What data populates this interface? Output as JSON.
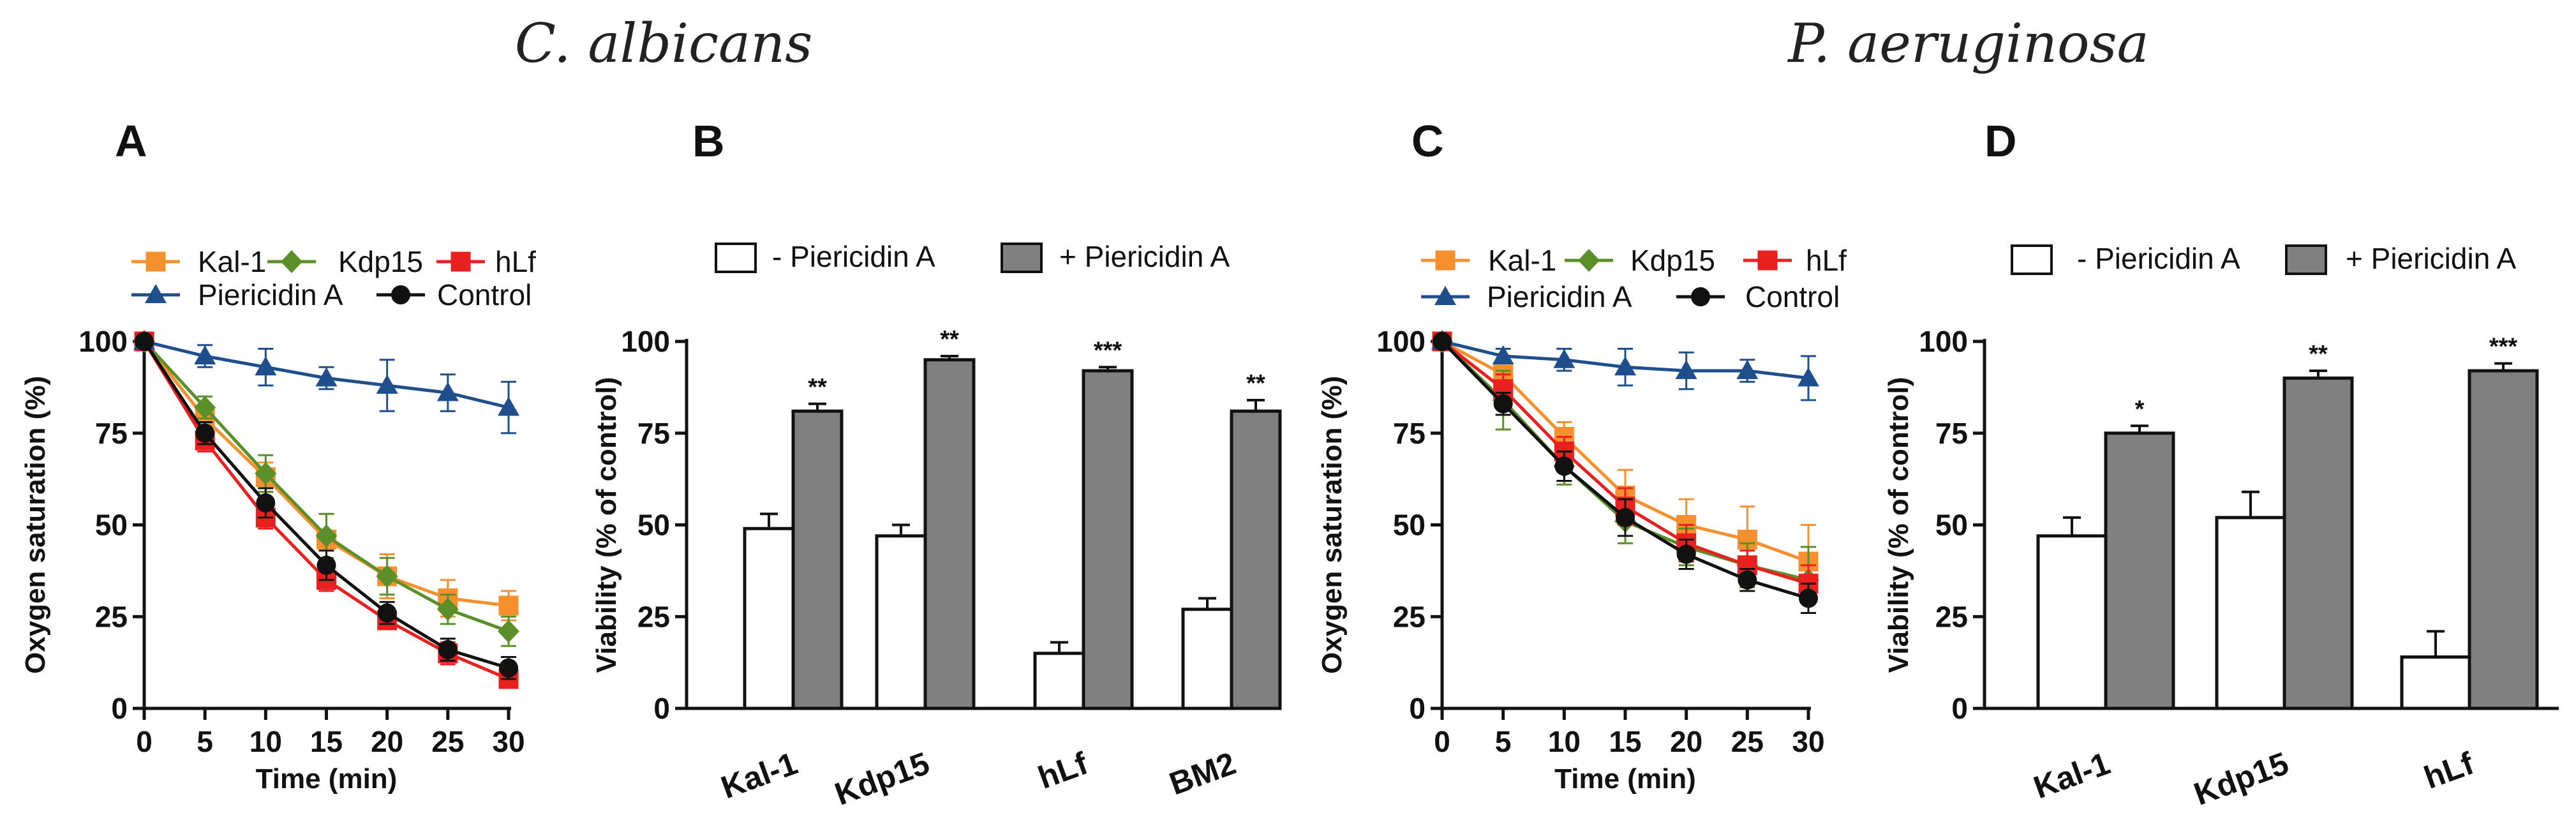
{
  "titles": {
    "left": "C. albicans",
    "right": "P. aeruginosa"
  },
  "chart_data": [
    {
      "panel": "A",
      "type": "line",
      "xlabel": "Time (min)",
      "ylabel": "Oxygen saturation (%)",
      "x": [
        0,
        5,
        10,
        15,
        20,
        25,
        30
      ],
      "xticks": [
        "0",
        "5",
        "10",
        "15",
        "20",
        "25",
        "30"
      ],
      "ylim": [
        0,
        100
      ],
      "yticks": [
        "0",
        "25",
        "50",
        "75",
        "100"
      ],
      "series": [
        {
          "name": "Kal-1",
          "color": "#f4912e",
          "marker": "square",
          "values": [
            100,
            79,
            63,
            46,
            36,
            30,
            28
          ],
          "err": [
            0,
            3,
            4,
            7,
            6,
            5,
            4
          ]
        },
        {
          "name": "Kdp15",
          "color": "#5a8f29",
          "marker": "diamond",
          "values": [
            100,
            82,
            64,
            47,
            36,
            27,
            21
          ],
          "err": [
            0,
            3,
            5,
            6,
            5,
            4,
            4
          ]
        },
        {
          "name": "hLf",
          "color": "#e8201f",
          "marker": "square",
          "values": [
            100,
            73,
            52,
            35,
            24,
            15,
            8
          ],
          "err": [
            0,
            3,
            3,
            3,
            2,
            3,
            2
          ]
        },
        {
          "name": "Piericidin A",
          "color": "#1f4e8c",
          "marker": "triangle",
          "values": [
            100,
            96,
            93,
            90,
            88,
            86,
            82
          ],
          "err": [
            0,
            3,
            5,
            3,
            7,
            5,
            7
          ]
        },
        {
          "name": "Control",
          "color": "#111111",
          "marker": "circle",
          "values": [
            100,
            75,
            56,
            39,
            26,
            16,
            11
          ],
          "err": [
            0,
            3,
            4,
            4,
            3,
            3,
            3
          ]
        }
      ]
    },
    {
      "panel": "B",
      "type": "bar",
      "ylabel": "Viability (% of control)",
      "categories": [
        "Kal-1",
        "Kdp15",
        "hLf",
        "BM2"
      ],
      "ylim": [
        0,
        100
      ],
      "yticks": [
        "0",
        "25",
        "50",
        "75",
        "100"
      ],
      "series": [
        {
          "name": "- Piericidin A",
          "color": "#ffffff",
          "values": [
            49,
            47,
            15,
            27
          ],
          "err": [
            4,
            3,
            3,
            3
          ]
        },
        {
          "name": "+ Piericidin A",
          "color": "#808080",
          "values": [
            81,
            95,
            92,
            81
          ],
          "err": [
            2,
            1,
            1,
            3
          ]
        }
      ],
      "significance": [
        "**",
        "**",
        "***",
        "**"
      ]
    },
    {
      "panel": "C",
      "type": "line",
      "xlabel": "Time (min)",
      "ylabel": "Oxygen saturation (%)",
      "x": [
        0,
        5,
        10,
        15,
        20,
        25,
        30
      ],
      "xticks": [
        "0",
        "5",
        "10",
        "15",
        "20",
        "25",
        "30"
      ],
      "ylim": [
        0,
        100
      ],
      "yticks": [
        "0",
        "25",
        "50",
        "75",
        "100"
      ],
      "series": [
        {
          "name": "Kal-1",
          "color": "#f4912e",
          "marker": "square",
          "values": [
            100,
            91,
            74,
            58,
            50,
            46,
            40
          ],
          "err": [
            0,
            3,
            4,
            7,
            7,
            9,
            10
          ]
        },
        {
          "name": "Kdp15",
          "color": "#5a8f29",
          "marker": "diamond",
          "values": [
            100,
            84,
            66,
            51,
            44,
            39,
            35
          ],
          "err": [
            0,
            8,
            5,
            6,
            5,
            6,
            9
          ]
        },
        {
          "name": "hLf",
          "color": "#e8201f",
          "marker": "square",
          "values": [
            100,
            87,
            70,
            55,
            45,
            39,
            34
          ],
          "err": [
            0,
            4,
            4,
            5,
            5,
            4,
            5
          ]
        },
        {
          "name": "Piericidin A",
          "color": "#1f4e8c",
          "marker": "triangle",
          "values": [
            100,
            96,
            95,
            93,
            92,
            92,
            90
          ],
          "err": [
            0,
            2,
            3,
            5,
            5,
            3,
            6
          ]
        },
        {
          "name": "Control",
          "color": "#111111",
          "marker": "circle",
          "values": [
            100,
            83,
            66,
            52,
            42,
            35,
            30
          ],
          "err": [
            0,
            3,
            4,
            5,
            4,
            3,
            4
          ]
        }
      ]
    },
    {
      "panel": "D",
      "type": "bar",
      "ylabel": "Viability (% of control)",
      "categories": [
        "Kal-1",
        "Kdp15",
        "hLf"
      ],
      "ylim": [
        0,
        100
      ],
      "yticks": [
        "0",
        "25",
        "50",
        "75",
        "100"
      ],
      "series": [
        {
          "name": "- Piericidin A",
          "color": "#ffffff",
          "values": [
            47,
            52,
            14
          ],
          "err": [
            5,
            7,
            7
          ]
        },
        {
          "name": "+ Piericidin A",
          "color": "#808080",
          "values": [
            75,
            90,
            92
          ],
          "err": [
            2,
            2,
            2
          ]
        }
      ],
      "significance": [
        "*",
        "**",
        "***"
      ]
    }
  ]
}
